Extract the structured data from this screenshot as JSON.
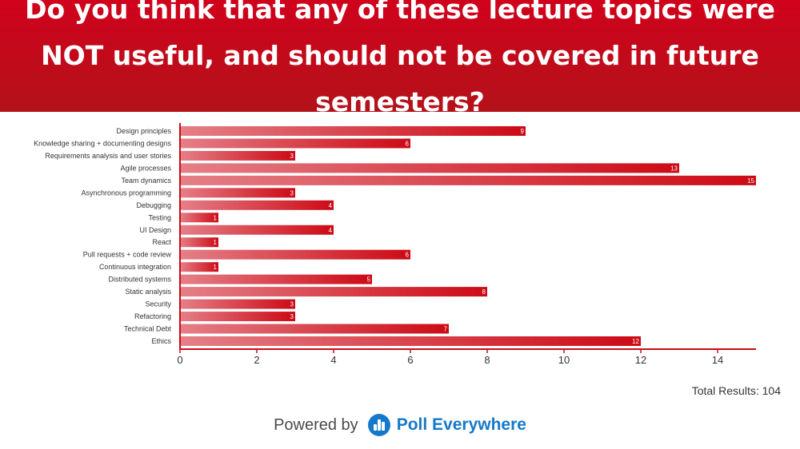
{
  "header": {
    "title": "Do you think that any of these lecture topics were NOT useful, and should not be covered in future semesters?"
  },
  "chart_data": {
    "type": "bar",
    "orientation": "horizontal",
    "categories": [
      "Design principles",
      "Knowledge sharing + documenting designs",
      "Requirements analysis and user stories",
      "Agile processes",
      "Team dynamics",
      "Asynchronous programming",
      "Debugging",
      "Testing",
      "UI Design",
      "React",
      "Pull requests + code review",
      "Continuous integration",
      "Distributed systems",
      "Static analysis",
      "Security",
      "Refactoring",
      "Technical Debt",
      "Ethics"
    ],
    "values": [
      9,
      6,
      3,
      13,
      15,
      3,
      4,
      1,
      4,
      1,
      6,
      1,
      5,
      8,
      3,
      3,
      7,
      12
    ],
    "xlim": [
      0,
      15
    ],
    "xticks": [
      0,
      2,
      4,
      6,
      8,
      10,
      12,
      14
    ],
    "grid": false,
    "data_labels": true,
    "bar_color": "#d0021b"
  },
  "footer": {
    "total_label": "Total Results: 104",
    "powered_by": "Powered by",
    "brand": "Poll Everywhere",
    "brand_color": "#1479c9"
  }
}
